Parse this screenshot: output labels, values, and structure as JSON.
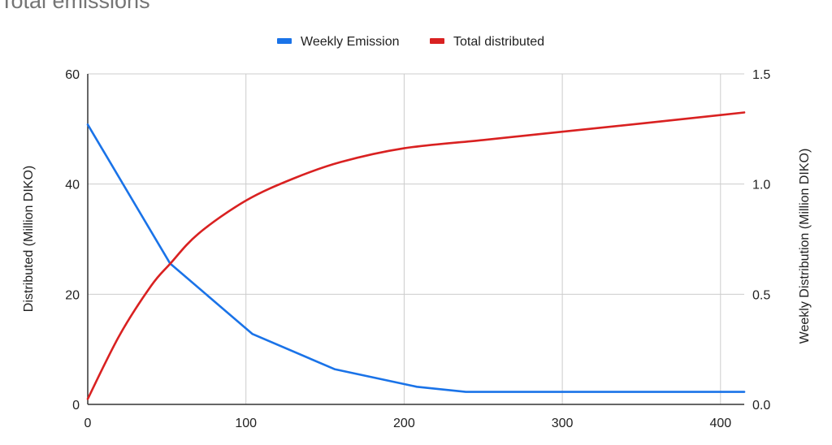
{
  "chart_data": {
    "type": "line",
    "title": "Total emissions",
    "series": [
      {
        "name": "Weekly Emission",
        "color": "#1a73e8",
        "axis": "right",
        "x": [
          0,
          52,
          104,
          156,
          208,
          239,
          415
        ],
        "values": [
          1.27,
          0.64,
          0.32,
          0.16,
          0.08,
          0.057,
          0.057
        ]
      },
      {
        "name": "Total distributed",
        "color": "#d92121",
        "axis": "left",
        "x": [
          0,
          20,
          40,
          52,
          70,
          100,
          130,
          160,
          200,
          250,
          300,
          350,
          415
        ],
        "values": [
          1,
          12.5,
          21.5,
          25.5,
          31,
          37,
          41,
          44,
          46.5,
          48,
          49.5,
          51,
          53
        ]
      }
    ],
    "xlim": [
      0,
      415
    ],
    "xticks": [
      "0",
      "100",
      "200",
      "300",
      "400"
    ],
    "ylabel_left": "Distributed (Million DIKO)",
    "ylim_left": [
      0,
      60
    ],
    "yticks_left": [
      "0",
      "20",
      "40",
      "60"
    ],
    "ylabel_right": "Weekly Distribution (Million DIKO)",
    "ylim_right": [
      0,
      1.5
    ],
    "yticks_right": [
      "0.0",
      "0.5",
      "1.0",
      "1.5"
    ],
    "grid": true,
    "legend_position": "top"
  }
}
